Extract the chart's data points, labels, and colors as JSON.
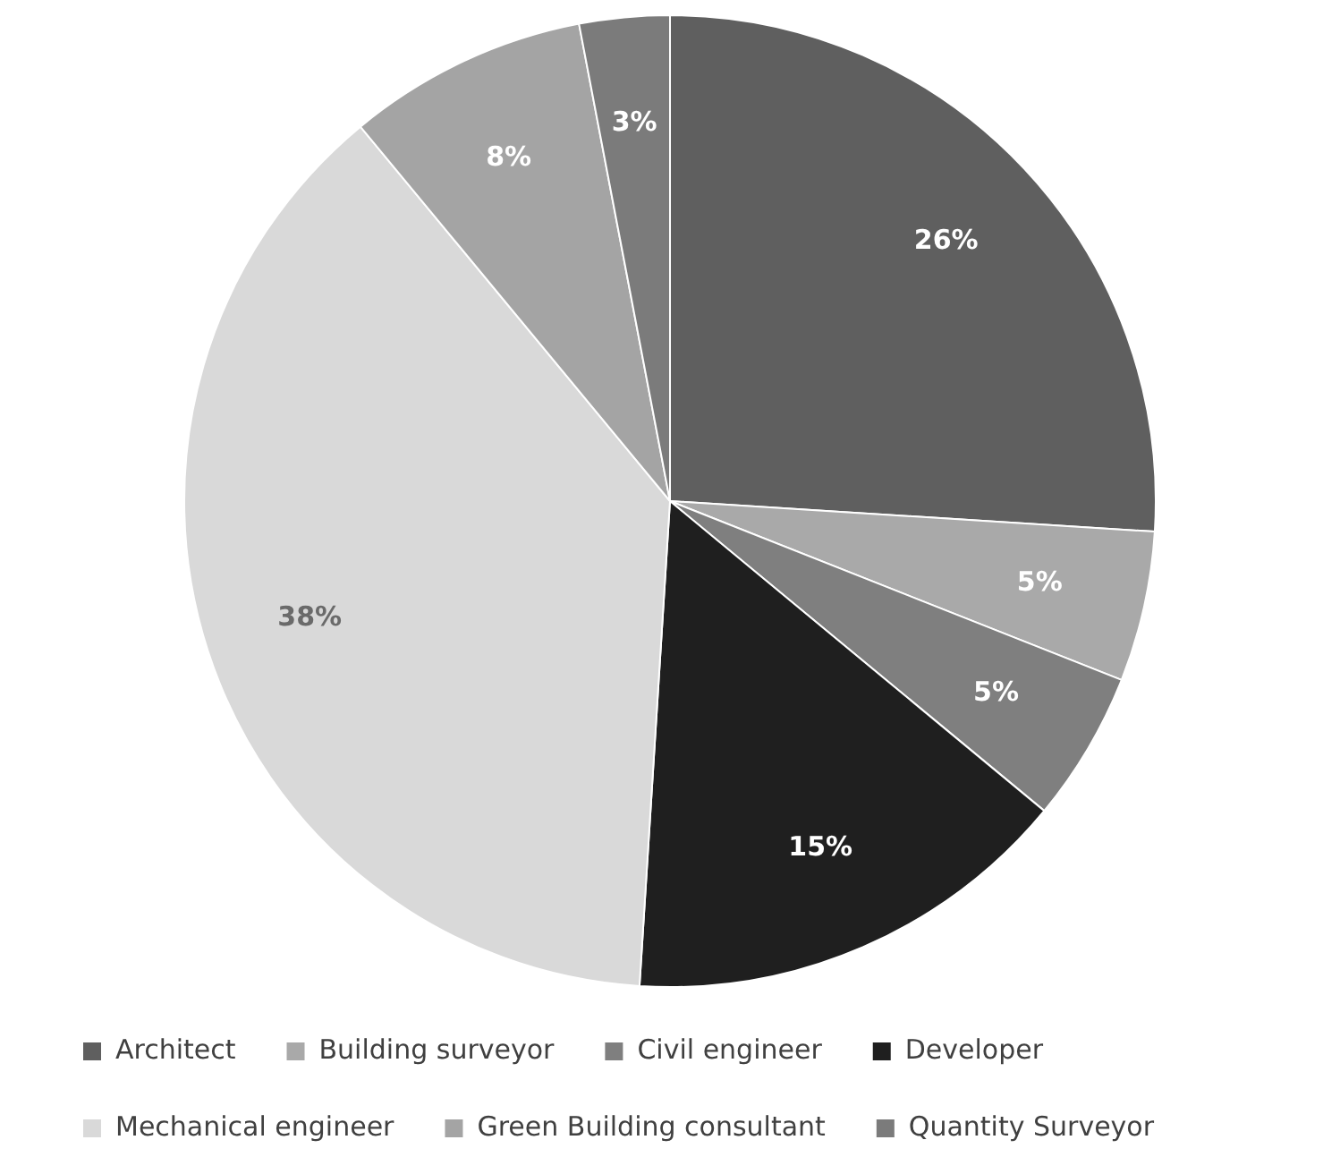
{
  "chart_data": {
    "type": "pie",
    "categories": [
      "Architect",
      "Building surveyor",
      "Civil engineer",
      "Developer",
      "Mechanical engineer",
      "Green Building consultant",
      "Quantity Surveyor"
    ],
    "values": [
      26,
      5,
      5,
      15,
      38,
      8,
      3
    ],
    "colors": [
      "#5f5f5f",
      "#a9a9a9",
      "#7f7f7f",
      "#1f1f1f",
      "#d9d9d9",
      "#a4a4a4",
      "#7b7b7b"
    ],
    "value_labels": [
      "26%",
      "5%",
      "5%",
      "15%",
      "38%",
      "8%",
      "3%"
    ],
    "legend": "bottom"
  }
}
